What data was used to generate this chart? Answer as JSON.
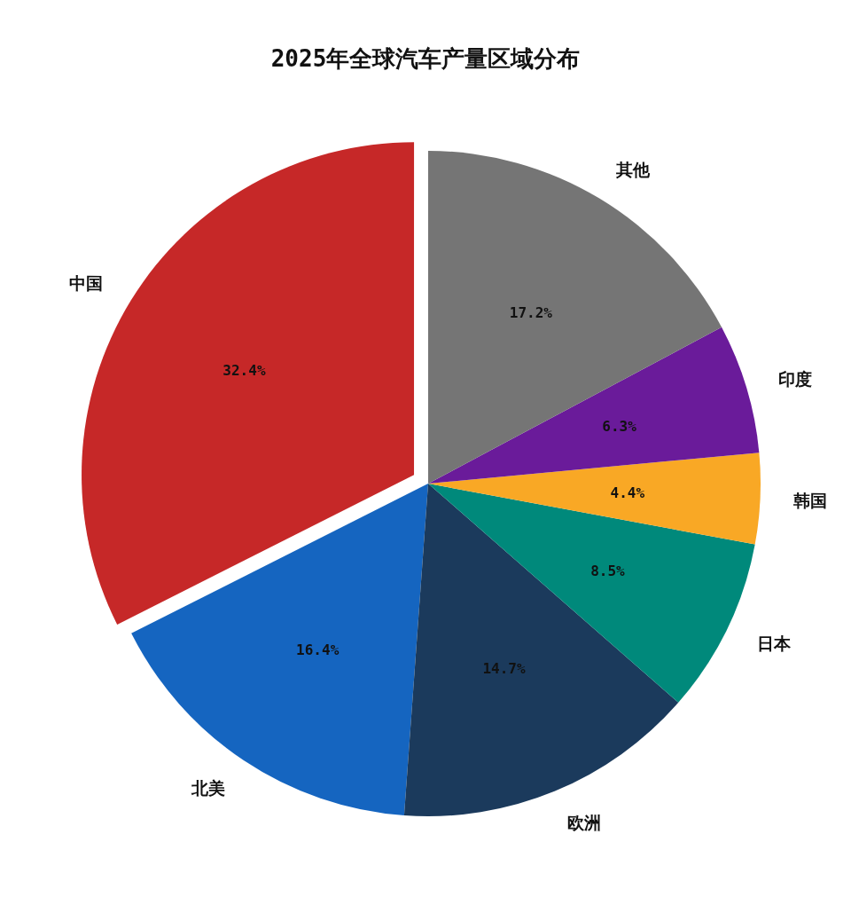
{
  "chart_data": {
    "type": "pie",
    "title": "2025年全球汽车产量区域分布",
    "categories": [
      "中国",
      "北美",
      "欧洲",
      "日本",
      "韩国",
      "印度",
      "其他"
    ],
    "values": [
      32.4,
      16.4,
      14.7,
      8.5,
      4.4,
      6.3,
      17.2
    ],
    "colors": [
      "#c62828",
      "#1565c0",
      "#1b3a5c",
      "#00897b",
      "#f9a825",
      "#6a1b9a",
      "#757575"
    ],
    "value_labels": [
      "32.4%",
      "16.4%",
      "14.7%",
      "8.5%",
      "4.4%",
      "6.3%",
      "17.2%"
    ]
  }
}
